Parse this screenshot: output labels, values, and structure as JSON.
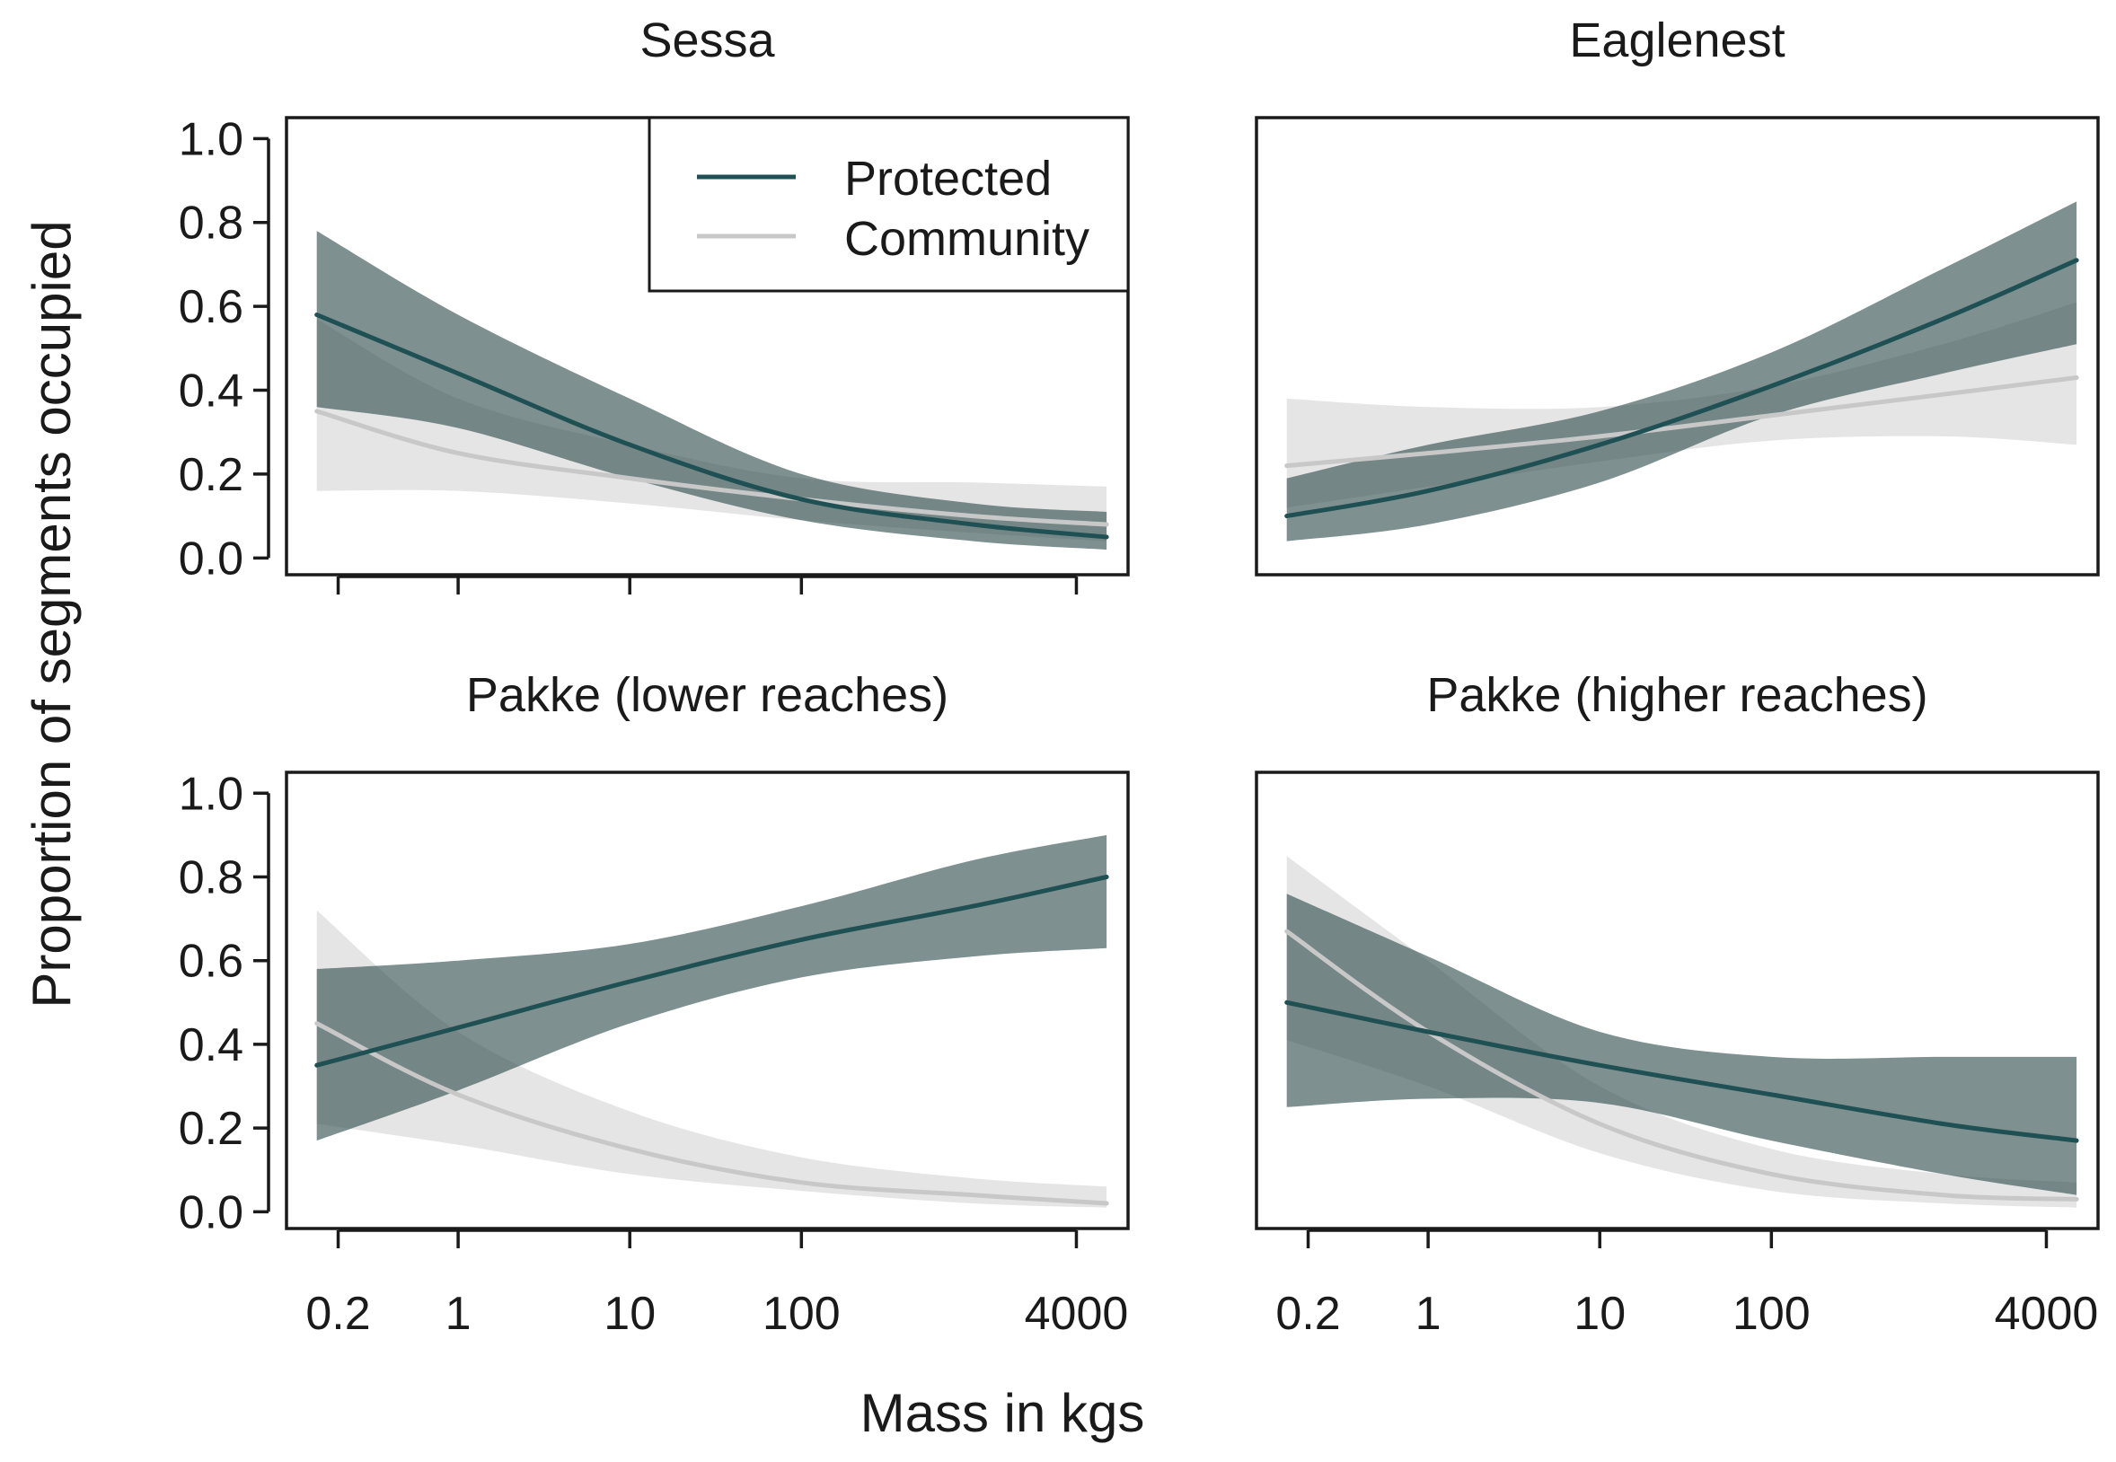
{
  "figure": {
    "ylabel": "Proportion of segments occupied",
    "xlabel": "Mass in kgs"
  },
  "legend": {
    "items": [
      {
        "label": "Protected",
        "color": "#1f5053"
      },
      {
        "label": "Community",
        "color": "#c8c8c8"
      }
    ]
  },
  "colors": {
    "protected_line": "#1f5053",
    "protected_band": "#2f4c4c",
    "community_line": "#c8c8c8",
    "community_band": "#b4b4b4",
    "frame": "#1a1a1a"
  },
  "chart_data": [
    {
      "type": "line",
      "title": "Sessa",
      "xscale": "log",
      "xlim": [
        0.1,
        8000
      ],
      "ylim": [
        -0.04,
        1.05
      ],
      "x_ticks": [
        0.2,
        1,
        10,
        100,
        4000
      ],
      "x_tick_labels": [],
      "y_ticks": [
        0,
        0.2,
        0.4,
        0.6,
        0.8,
        1.0
      ],
      "y_tick_labels": [
        "0.0",
        "0.2",
        "0.4",
        "0.6",
        "0.8",
        "1.0"
      ],
      "legend": "top-right",
      "series": [
        {
          "name": "Protected",
          "x": [
            0.15,
            1,
            10,
            100,
            1000,
            6000
          ],
          "y": [
            0.58,
            0.44,
            0.27,
            0.14,
            0.08,
            0.05
          ],
          "lower": [
            0.36,
            0.31,
            0.19,
            0.09,
            0.04,
            0.02
          ],
          "upper": [
            0.78,
            0.58,
            0.38,
            0.2,
            0.13,
            0.11
          ]
        },
        {
          "name": "Community",
          "x": [
            0.15,
            1,
            10,
            100,
            1000,
            6000
          ],
          "y": [
            0.35,
            0.25,
            0.19,
            0.14,
            0.1,
            0.08
          ],
          "lower": [
            0.16,
            0.16,
            0.13,
            0.09,
            0.06,
            0.04
          ],
          "upper": [
            0.57,
            0.38,
            0.27,
            0.19,
            0.18,
            0.17
          ]
        }
      ]
    },
    {
      "type": "line",
      "title": "Eaglenest",
      "xscale": "log",
      "xlim": [
        0.1,
        8000
      ],
      "ylim": [
        -0.04,
        1.05
      ],
      "x_ticks": [],
      "x_tick_labels": [],
      "y_ticks": [],
      "y_tick_labels": [],
      "legend": "none",
      "series": [
        {
          "name": "Protected",
          "x": [
            0.15,
            1,
            10,
            100,
            1000,
            6000
          ],
          "y": [
            0.1,
            0.16,
            0.27,
            0.41,
            0.57,
            0.71
          ],
          "lower": [
            0.04,
            0.08,
            0.18,
            0.34,
            0.44,
            0.51
          ],
          "upper": [
            0.19,
            0.27,
            0.35,
            0.49,
            0.69,
            0.85
          ]
        },
        {
          "name": "Community",
          "x": [
            0.15,
            1,
            10,
            100,
            1000,
            6000
          ],
          "y": [
            0.22,
            0.25,
            0.29,
            0.34,
            0.39,
            0.43
          ],
          "lower": [
            0.12,
            0.17,
            0.23,
            0.28,
            0.29,
            0.27
          ],
          "upper": [
            0.38,
            0.36,
            0.36,
            0.41,
            0.51,
            0.61
          ]
        }
      ]
    },
    {
      "type": "line",
      "title": "Pakke (lower reaches)",
      "xscale": "log",
      "xlim": [
        0.1,
        8000
      ],
      "ylim": [
        -0.04,
        1.05
      ],
      "x_ticks": [
        0.2,
        1,
        10,
        100,
        4000
      ],
      "x_tick_labels": [
        "0.2",
        "1",
        "10",
        "100",
        "4000"
      ],
      "y_ticks": [
        0,
        0.2,
        0.4,
        0.6,
        0.8,
        1.0
      ],
      "y_tick_labels": [
        "0.0",
        "0.2",
        "0.4",
        "0.6",
        "0.8",
        "1.0"
      ],
      "legend": "none",
      "series": [
        {
          "name": "Protected",
          "x": [
            0.15,
            1,
            10,
            100,
            1000,
            6000
          ],
          "y": [
            0.35,
            0.44,
            0.55,
            0.65,
            0.73,
            0.8
          ],
          "lower": [
            0.17,
            0.29,
            0.45,
            0.56,
            0.61,
            0.63
          ],
          "upper": [
            0.58,
            0.6,
            0.64,
            0.73,
            0.84,
            0.9
          ]
        },
        {
          "name": "Community",
          "x": [
            0.15,
            1,
            10,
            100,
            1000,
            6000
          ],
          "y": [
            0.45,
            0.28,
            0.15,
            0.07,
            0.04,
            0.02
          ],
          "lower": [
            0.21,
            0.16,
            0.09,
            0.05,
            0.02,
            0.01
          ],
          "upper": [
            0.72,
            0.43,
            0.24,
            0.13,
            0.08,
            0.06
          ]
        }
      ]
    },
    {
      "type": "line",
      "title": "Pakke (higher reaches)",
      "xscale": "log",
      "xlim": [
        0.1,
        8000
      ],
      "ylim": [
        -0.04,
        1.05
      ],
      "x_ticks": [
        0.2,
        1,
        10,
        100,
        4000
      ],
      "x_tick_labels": [
        "0.2",
        "1",
        "10",
        "100",
        "4000"
      ],
      "y_ticks": [],
      "y_tick_labels": [],
      "legend": "none",
      "series": [
        {
          "name": "Protected",
          "x": [
            0.15,
            1,
            10,
            100,
            1000,
            6000
          ],
          "y": [
            0.5,
            0.43,
            0.35,
            0.28,
            0.21,
            0.17
          ],
          "lower": [
            0.25,
            0.27,
            0.26,
            0.17,
            0.09,
            0.04
          ],
          "upper": [
            0.76,
            0.61,
            0.43,
            0.37,
            0.37,
            0.37
          ]
        },
        {
          "name": "Community",
          "x": [
            0.15,
            1,
            10,
            100,
            1000,
            6000
          ],
          "y": [
            0.67,
            0.43,
            0.21,
            0.09,
            0.04,
            0.03
          ],
          "lower": [
            0.41,
            0.3,
            0.14,
            0.05,
            0.02,
            0.01
          ],
          "upper": [
            0.85,
            0.6,
            0.3,
            0.15,
            0.09,
            0.07
          ]
        }
      ]
    }
  ]
}
